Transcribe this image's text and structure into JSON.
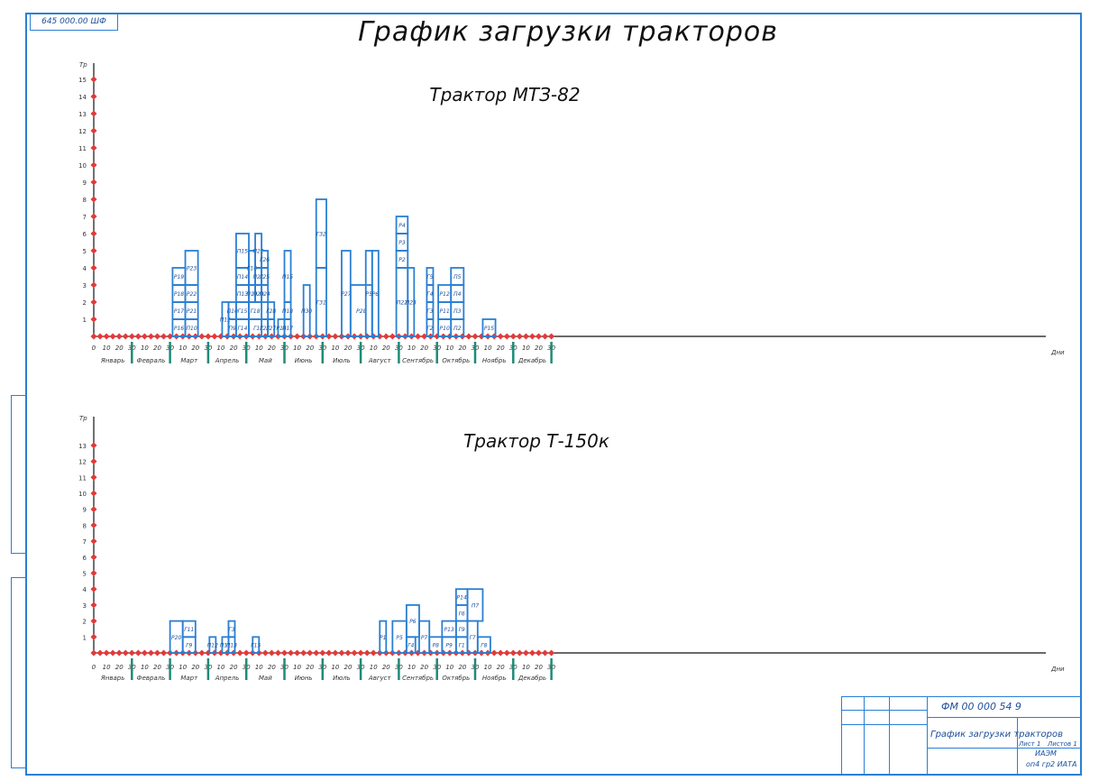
{
  "sheet": {
    "stamp_top": "645 000.00 ШФ",
    "title": "График загрузки тракторов",
    "months": [
      "Январь",
      "Февраль",
      "Март",
      "Апрель",
      "Май",
      "Июнь",
      "Июль",
      "Август",
      "Сентябрь",
      "Октябрь",
      "Ноябрь",
      "Декабрь"
    ],
    "tick_labels": [
      "0",
      "10",
      "20",
      "30"
    ],
    "axis_unit_x": "Дни",
    "axis_unit_y": "Тр"
  },
  "title_block": {
    "code": "ФМ 00 000 54 9",
    "name": "График загрузки тракторов",
    "sheet": "Лист 1",
    "sheets": "Листов 1",
    "org1": "ИАЭМ",
    "org2": "оп4 гр2 ИАТА"
  },
  "chart_data": [
    {
      "type": "bar",
      "title": "Трактор МТЗ-82",
      "xlabel": "Дни",
      "ylabel": "Тр",
      "ylim": [
        0,
        15
      ],
      "x_unit": "day of year, 30-day months",
      "boxes": [
        {
          "start": 62,
          "end": 72,
          "y0": 0,
          "y1": 1,
          "label": "Р16"
        },
        {
          "start": 62,
          "end": 72,
          "y0": 1,
          "y1": 2,
          "label": "Р17"
        },
        {
          "start": 62,
          "end": 72,
          "y0": 2,
          "y1": 3,
          "label": "Р18"
        },
        {
          "start": 62,
          "end": 72,
          "y0": 3,
          "y1": 4,
          "label": "Р19"
        },
        {
          "start": 72,
          "end": 82,
          "y0": 0,
          "y1": 1,
          "label": "П10"
        },
        {
          "start": 72,
          "end": 82,
          "y0": 1,
          "y1": 2,
          "label": "Р21"
        },
        {
          "start": 72,
          "end": 82,
          "y0": 2,
          "y1": 3,
          "label": "Р22"
        },
        {
          "start": 72,
          "end": 82,
          "y0": 3,
          "y1": 5,
          "label": "Р23"
        },
        {
          "start": 101,
          "end": 106,
          "y0": 0,
          "y1": 2,
          "label": "П12"
        },
        {
          "start": 106,
          "end": 112,
          "y0": 0,
          "y1": 1,
          "label": "П9"
        },
        {
          "start": 106,
          "end": 112,
          "y0": 1,
          "y1": 2,
          "label": "П10"
        },
        {
          "start": 112,
          "end": 122,
          "y0": 0,
          "y1": 1,
          "label": "Г14"
        },
        {
          "start": 112,
          "end": 122,
          "y0": 1,
          "y1": 2,
          "label": "Г15"
        },
        {
          "start": 112,
          "end": 122,
          "y0": 2,
          "y1": 3,
          "label": "П13"
        },
        {
          "start": 112,
          "end": 122,
          "y0": 3,
          "y1": 4,
          "label": "П14"
        },
        {
          "start": 112,
          "end": 122,
          "y0": 4,
          "y1": 6,
          "label": "П15"
        },
        {
          "start": 122,
          "end": 127,
          "y0": 3,
          "y1": 5,
          "label": "Г16"
        },
        {
          "start": 122,
          "end": 127,
          "y0": 2,
          "y1": 3,
          "label": "П19"
        },
        {
          "start": 122,
          "end": 137,
          "y0": 0,
          "y1": 1,
          "label": "Г17"
        },
        {
          "start": 122,
          "end": 132,
          "y0": 1,
          "y1": 2,
          "label": "Г18"
        },
        {
          "start": 127,
          "end": 132,
          "y0": 2,
          "y1": 3,
          "label": "П20"
        },
        {
          "start": 127,
          "end": 132,
          "y0": 3,
          "y1": 4,
          "label": "П21"
        },
        {
          "start": 127,
          "end": 132,
          "y0": 4,
          "y1": 6,
          "label": "П22"
        },
        {
          "start": 132,
          "end": 137,
          "y0": 0,
          "y1": 1,
          "label": "Г23"
        },
        {
          "start": 132,
          "end": 137,
          "y0": 2,
          "y1": 3,
          "label": "П24"
        },
        {
          "start": 132,
          "end": 137,
          "y0": 3,
          "y1": 4,
          "label": "Г25"
        },
        {
          "start": 132,
          "end": 137,
          "y0": 4,
          "y1": 5,
          "label": "Г26"
        },
        {
          "start": 137,
          "end": 142,
          "y0": 0,
          "y1": 1,
          "label": "Г27"
        },
        {
          "start": 137,
          "end": 142,
          "y0": 1,
          "y1": 2,
          "label": "Г28"
        },
        {
          "start": 145,
          "end": 150,
          "y0": 0,
          "y1": 1,
          "label": "Р16"
        },
        {
          "start": 150,
          "end": 155,
          "y0": 0,
          "y1": 1,
          "label": "П17"
        },
        {
          "start": 150,
          "end": 155,
          "y0": 1,
          "y1": 2,
          "label": "П18"
        },
        {
          "start": 150,
          "end": 155,
          "y0": 2,
          "y1": 5,
          "label": "П15"
        },
        {
          "start": 165,
          "end": 170,
          "y0": 0,
          "y1": 3,
          "label": "П30"
        },
        {
          "start": 175,
          "end": 183,
          "y0": 0,
          "y1": 4,
          "label": "Г31"
        },
        {
          "start": 175,
          "end": 183,
          "y0": 4,
          "y1": 8,
          "label": "Г32"
        },
        {
          "start": 195,
          "end": 202,
          "y0": 0,
          "y1": 5,
          "label": "Р27"
        },
        {
          "start": 202,
          "end": 219,
          "y0": 0,
          "y1": 3,
          "label": "Р28"
        },
        {
          "start": 214,
          "end": 219,
          "y0": 0,
          "y1": 5,
          "label": "Р5"
        },
        {
          "start": 219,
          "end": 224,
          "y0": 0,
          "y1": 5,
          "label": "Р6"
        },
        {
          "start": 238,
          "end": 247,
          "y0": 0,
          "y1": 4,
          "label": "П22"
        },
        {
          "start": 238,
          "end": 247,
          "y0": 4,
          "y1": 5,
          "label": "Р2"
        },
        {
          "start": 238,
          "end": 247,
          "y0": 5,
          "y1": 6,
          "label": "Р3"
        },
        {
          "start": 238,
          "end": 247,
          "y0": 6,
          "y1": 7,
          "label": "Р4"
        },
        {
          "start": 247,
          "end": 252,
          "y0": 0,
          "y1": 4,
          "label": "П23"
        },
        {
          "start": 262,
          "end": 267,
          "y0": 0,
          "y1": 1,
          "label": "Г2"
        },
        {
          "start": 262,
          "end": 267,
          "y0": 1,
          "y1": 2,
          "label": "Г3"
        },
        {
          "start": 262,
          "end": 267,
          "y0": 2,
          "y1": 3,
          "label": "Г4"
        },
        {
          "start": 262,
          "end": 267,
          "y0": 3,
          "y1": 4,
          "label": "Г5"
        },
        {
          "start": 271,
          "end": 281,
          "y0": 0,
          "y1": 1,
          "label": "Р10"
        },
        {
          "start": 271,
          "end": 281,
          "y0": 1,
          "y1": 2,
          "label": "Р11"
        },
        {
          "start": 271,
          "end": 281,
          "y0": 2,
          "y1": 3,
          "label": "Р12"
        },
        {
          "start": 281,
          "end": 291,
          "y0": 0,
          "y1": 1,
          "label": "П2"
        },
        {
          "start": 281,
          "end": 291,
          "y0": 1,
          "y1": 2,
          "label": "П3"
        },
        {
          "start": 281,
          "end": 291,
          "y0": 2,
          "y1": 3,
          "label": "П4"
        },
        {
          "start": 281,
          "end": 291,
          "y0": 3,
          "y1": 4,
          "label": "П5"
        },
        {
          "start": 306,
          "end": 316,
          "y0": 0,
          "y1": 1,
          "label": "Р15"
        }
      ]
    },
    {
      "type": "bar",
      "title": "Трактор Т-150к",
      "xlabel": "Дни",
      "ylabel": "Тр",
      "ylim": [
        0,
        13
      ],
      "x_unit": "day of year, 30-day months",
      "boxes": [
        {
          "start": 60,
          "end": 70,
          "y0": 0,
          "y1": 2,
          "label": "Р20"
        },
        {
          "start": 70,
          "end": 80,
          "y0": 0,
          "y1": 1,
          "label": "Г9"
        },
        {
          "start": 70,
          "end": 80,
          "y0": 1,
          "y1": 2,
          "label": "Г11"
        },
        {
          "start": 91,
          "end": 96,
          "y0": 0,
          "y1": 1,
          "label": "П12"
        },
        {
          "start": 101,
          "end": 106,
          "y0": 0,
          "y1": 1,
          "label": "П11"
        },
        {
          "start": 106,
          "end": 111,
          "y0": 0,
          "y1": 1,
          "label": "П13"
        },
        {
          "start": 106,
          "end": 111,
          "y0": 1,
          "y1": 2,
          "label": "Г3"
        },
        {
          "start": 125,
          "end": 130,
          "y0": 0,
          "y1": 1,
          "label": "Г15"
        },
        {
          "start": 225,
          "end": 230,
          "y0": 0,
          "y1": 2,
          "label": "Р1"
        },
        {
          "start": 235,
          "end": 246,
          "y0": 0,
          "y1": 2,
          "label": "Р5"
        },
        {
          "start": 246,
          "end": 253,
          "y0": 0,
          "y1": 1,
          "label": "Г4"
        },
        {
          "start": 246,
          "end": 256,
          "y0": 1,
          "y1": 3,
          "label": "Р6"
        },
        {
          "start": 256,
          "end": 264,
          "y0": 0,
          "y1": 2,
          "label": "Р7"
        },
        {
          "start": 264,
          "end": 274,
          "y0": 0,
          "y1": 1,
          "label": "Р8"
        },
        {
          "start": 274,
          "end": 285,
          "y0": 0,
          "y1": 1,
          "label": "Р9"
        },
        {
          "start": 274,
          "end": 285,
          "y0": 1,
          "y1": 2,
          "label": "Р13"
        },
        {
          "start": 285,
          "end": 294,
          "y0": 0,
          "y1": 1,
          "label": "Г1"
        },
        {
          "start": 285,
          "end": 294,
          "y0": 1,
          "y1": 2,
          "label": "Г9"
        },
        {
          "start": 285,
          "end": 294,
          "y0": 2,
          "y1": 3,
          "label": "Г6"
        },
        {
          "start": 285,
          "end": 294,
          "y0": 3,
          "y1": 4,
          "label": "Р14"
        },
        {
          "start": 294,
          "end": 302,
          "y0": 0,
          "y1": 2,
          "label": "Г7"
        },
        {
          "start": 294,
          "end": 306,
          "y0": 2,
          "y1": 4,
          "label": "П7"
        },
        {
          "start": 302,
          "end": 312,
          "y0": 0,
          "y1": 1,
          "label": "Г8"
        }
      ]
    }
  ]
}
